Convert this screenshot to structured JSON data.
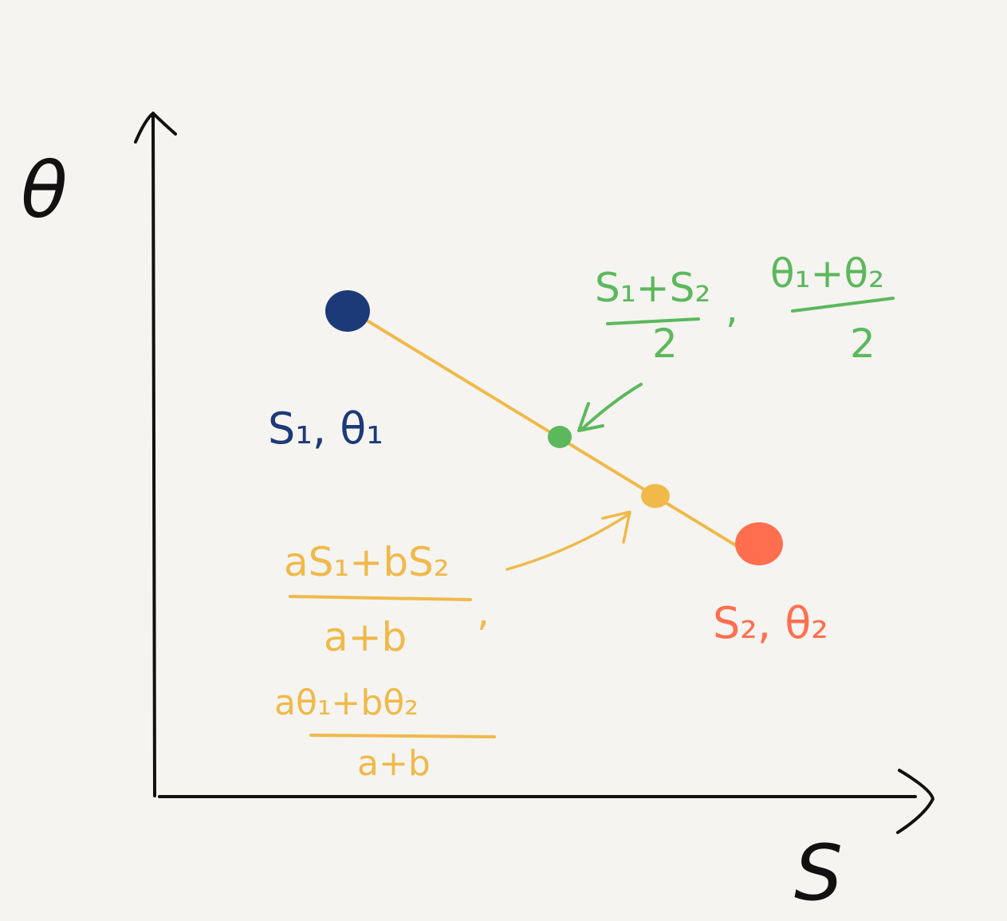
{
  "axes": {
    "y_label": "θ",
    "x_label": "S"
  },
  "points": {
    "p1": {
      "label": "S₁, θ₁"
    },
    "p2": {
      "label": "S₂, θ₂"
    }
  },
  "midpoint": {
    "s_num": "S₁+S₂",
    "s_den": "2",
    "sep": ",",
    "theta_num": "θ₁+θ₂",
    "theta_den": "2"
  },
  "weighted": {
    "s_num": "aS₁+bS₂",
    "s_den": "a+b",
    "sep": ",",
    "theta_num": "aθ₁+bθ₂",
    "theta_den": "a+b"
  },
  "colors": {
    "background": "#f5f4f1",
    "axis": "#111111",
    "point1": "#1d3a78",
    "point2": "#ff6f4f",
    "midpoint": "#5cb85c",
    "weighted": "#f0b94a"
  }
}
